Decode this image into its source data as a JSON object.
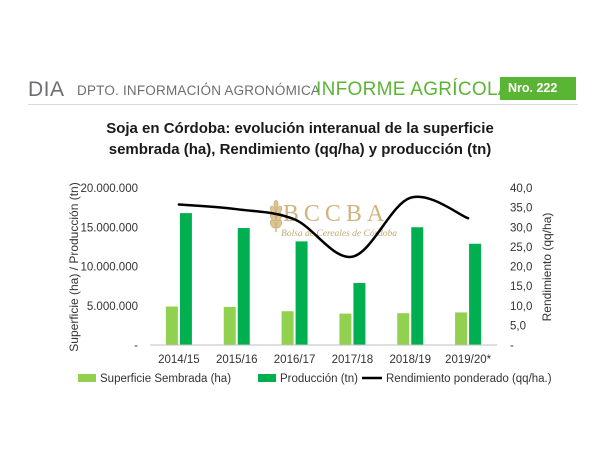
{
  "header": {
    "org": "DIA",
    "dept": "DPTO. INFORMACIÓN AGRONÓMICA",
    "report": "INFORME AGRÍCOLA",
    "number": "Nro. 222"
  },
  "watermark": {
    "logo_text": "BCCBA",
    "subtitle": "Bolsa de Cereales de Córdoba"
  },
  "colors": {
    "brand_green": "#5bb534",
    "superficie": "#92d050",
    "produccion": "#00b050",
    "rendimiento": "#000000",
    "watermark": "#c8a86a"
  },
  "chart_data": {
    "type": "bar",
    "title_line1": "Soja en Córdoba: evolución interanual de la superficie",
    "title_line2": "sembrada (ha), Rendimiento (qq/ha) y producción (tn)",
    "categories": [
      "2014/15",
      "2015/16",
      "2016/17",
      "2017/18",
      "2018/19",
      "2019/20*"
    ],
    "ylabel_left": "Superficie (ha) / Producción (tn)",
    "ylabel_right": "Rendimiento (qq/ha)",
    "ylim_left": [
      0,
      20000000
    ],
    "ylim_right": [
      0,
      40
    ],
    "left_ticks": [
      {
        "value": 0,
        "label": "-"
      },
      {
        "value": 5000000,
        "label": "5.000.000"
      },
      {
        "value": 10000000,
        "label": "10.000.000"
      },
      {
        "value": 15000000,
        "label": "15.000.000"
      },
      {
        "value": 20000000,
        "label": "20.000.000"
      }
    ],
    "right_ticks": [
      {
        "value": 0,
        "label": "-"
      },
      {
        "value": 5,
        "label": "5,0"
      },
      {
        "value": 10,
        "label": "10,0"
      },
      {
        "value": 15,
        "label": "15,0"
      },
      {
        "value": 20,
        "label": "20,0"
      },
      {
        "value": 25,
        "label": "25,0"
      },
      {
        "value": 30,
        "label": "30,0"
      },
      {
        "value": 35,
        "label": "35,0"
      },
      {
        "value": 40,
        "label": "40,0"
      }
    ],
    "series": [
      {
        "name": "Superficie Sembrada (ha)",
        "type": "bar",
        "axis": "left",
        "values": [
          4900000,
          4850000,
          4300000,
          4000000,
          4050000,
          4150000
        ]
      },
      {
        "name": "Producción (tn)",
        "type": "bar",
        "axis": "left",
        "values": [
          16800000,
          14900000,
          13200000,
          7900000,
          15000000,
          12900000
        ]
      },
      {
        "name": "Rendimiento ponderado (qq/ha.)",
        "type": "line",
        "axis": "right",
        "values": [
          35.8,
          34.6,
          32.0,
          22.5,
          37.5,
          32.3
        ]
      }
    ],
    "grid": false,
    "legend_position": "bottom"
  }
}
